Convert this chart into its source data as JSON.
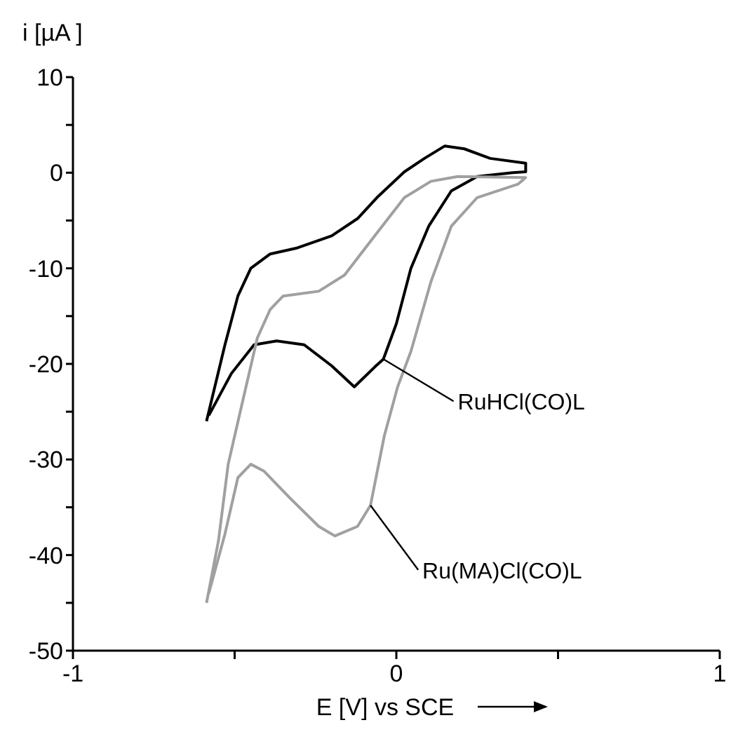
{
  "chart_data": {
    "type": "line",
    "xlabel": "E [V] vs SCE",
    "ylabel": "i [µA ]",
    "xlim": [
      -1,
      1
    ],
    "ylim": [
      -50,
      10
    ],
    "xticks": [
      -1,
      {
        "value": -0.5,
        "label": null
      },
      0,
      {
        "value": 0.5,
        "label": null
      },
      1
    ],
    "yticks": [
      10,
      {
        "value": 5,
        "label": null
      },
      0,
      {
        "value": -5,
        "label": null
      },
      -10,
      {
        "value": -15,
        "label": null
      },
      -20,
      {
        "value": -25,
        "label": null
      },
      -30,
      {
        "value": -35,
        "label": null
      },
      -40,
      {
        "value": -45,
        "label": null
      },
      -50
    ],
    "grid": false,
    "legend": false,
    "marker": "none",
    "line_style": "solid",
    "series": [
      {
        "name": "RuHCl(CO)L",
        "color": "#000000",
        "x": [
          -0.587,
          -0.53,
          -0.49,
          -0.45,
          -0.39,
          -0.31,
          -0.2,
          -0.12,
          -0.06,
          0.025,
          0.087,
          0.15,
          0.21,
          0.29,
          0.4,
          0.4,
          0.36,
          0.25,
          0.17,
          0.1,
          0.045,
          0.0,
          -0.04,
          -0.066,
          -0.13,
          -0.2,
          -0.285,
          -0.37,
          -0.44,
          -0.51,
          -0.58
        ],
        "values": [
          -26,
          -18,
          -12.9,
          -10,
          -8.5,
          -7.9,
          -6.6,
          -4.8,
          -2.6,
          0.1,
          1.5,
          2.8,
          2.5,
          1.5,
          1.0,
          0.1,
          0,
          -0.4,
          -1.9,
          -5.6,
          -10,
          -15.8,
          -19.5,
          -20.3,
          -22.4,
          -20.2,
          -18,
          -17.6,
          -18,
          -21,
          -25.4
        ]
      },
      {
        "name": "Ru(MA)Cl(CO)L",
        "color": "#a0a0a0",
        "x": [
          -0.587,
          -0.55,
          -0.52,
          -0.48,
          -0.43,
          -0.39,
          -0.35,
          -0.24,
          -0.16,
          -0.06,
          0.025,
          0.107,
          0.19,
          0.4,
          0.376,
          0.25,
          0.17,
          0.107,
          0.045,
          0.004,
          -0.037,
          -0.08,
          -0.12,
          -0.19,
          -0.24,
          -0.33,
          -0.41,
          -0.45,
          -0.49,
          -0.53,
          -0.58
        ],
        "values": [
          -45,
          -38.5,
          -30.5,
          -24.6,
          -17.3,
          -14.3,
          -12.9,
          -12.4,
          -10.7,
          -6.3,
          -2.6,
          -0.9,
          -0.4,
          -0.5,
          -1.2,
          -2.6,
          -5.6,
          -11.4,
          -18.7,
          -22.4,
          -27.5,
          -34.8,
          -37,
          -38,
          -37,
          -34,
          -31.2,
          -30.5,
          -31.9,
          -37.8,
          -44
        ]
      }
    ]
  }
}
